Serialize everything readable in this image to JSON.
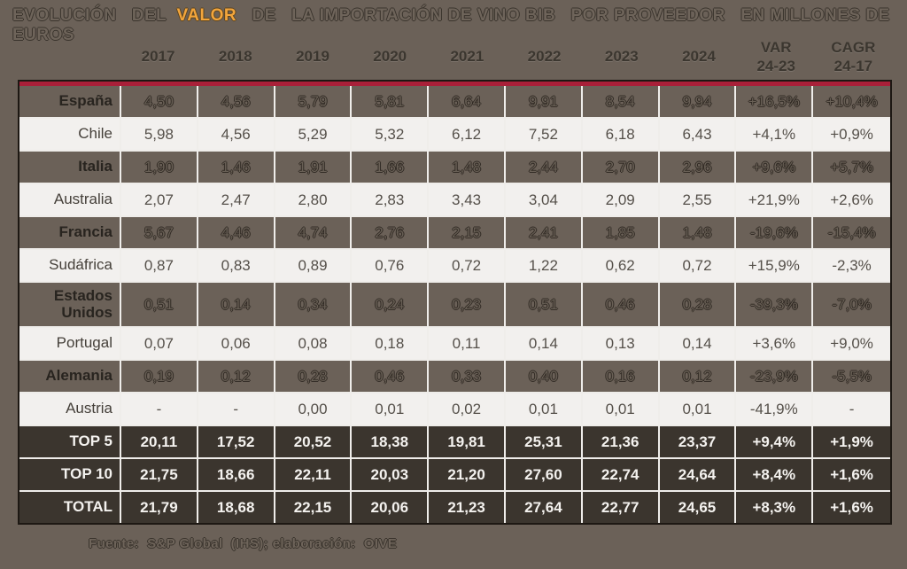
{
  "title": {
    "text_before": "EVOLUCIÓN   DEL  ",
    "highlight": "VALOR",
    "text_after": "   DE   LA IMPORTACIÓN DE VINO BIB   POR PROVEEDOR   EN MILLONES DE EUROS"
  },
  "columns": [
    {
      "label": "2017",
      "sub": ""
    },
    {
      "label": "2018",
      "sub": ""
    },
    {
      "label": "2019",
      "sub": ""
    },
    {
      "label": "2020",
      "sub": ""
    },
    {
      "label": "2021",
      "sub": ""
    },
    {
      "label": "2022",
      "sub": ""
    },
    {
      "label": "2023",
      "sub": ""
    },
    {
      "label": "2024",
      "sub": ""
    },
    {
      "label": "VAR",
      "sub": "24-23"
    },
    {
      "label": "CAGR",
      "sub": "24-17"
    }
  ],
  "rows": [
    {
      "label": "España",
      "style": "dark",
      "values": [
        "4,50",
        "4,56",
        "5,79",
        "5,81",
        "6,64",
        "9,91",
        "8,54",
        "9,94",
        "+16,5%",
        "+10,4%"
      ]
    },
    {
      "label": "Chile",
      "style": "light",
      "values": [
        "5,98",
        "4,56",
        "5,29",
        "5,32",
        "6,12",
        "7,52",
        "6,18",
        "6,43",
        "+4,1%",
        "+0,9%"
      ]
    },
    {
      "label": "Italia",
      "style": "dark",
      "values": [
        "1,90",
        "1,46",
        "1,91",
        "1,66",
        "1,48",
        "2,44",
        "2,70",
        "2,96",
        "+9,6%",
        "+5,7%"
      ]
    },
    {
      "label": "Australia",
      "style": "light",
      "values": [
        "2,07",
        "2,47",
        "2,80",
        "2,83",
        "3,43",
        "3,04",
        "2,09",
        "2,55",
        "+21,9%",
        "+2,6%"
      ]
    },
    {
      "label": "Francia",
      "style": "dark",
      "values": [
        "5,67",
        "4,46",
        "4,74",
        "2,76",
        "2,15",
        "2,41",
        "1,85",
        "1,48",
        "-19,6%",
        "-15,4%"
      ]
    },
    {
      "label": "Sudáfrica",
      "style": "light",
      "values": [
        "0,87",
        "0,83",
        "0,89",
        "0,76",
        "0,72",
        "1,22",
        "0,62",
        "0,72",
        "+15,9%",
        "-2,3%"
      ]
    },
    {
      "label": "Estados Unidos",
      "style": "dark",
      "tall": true,
      "values": [
        "0,51",
        "0,14",
        "0,34",
        "0,24",
        "0,23",
        "0,51",
        "0,46",
        "0,28",
        "-39,3%",
        "-7,0%"
      ]
    },
    {
      "label": "Portugal",
      "style": "light",
      "values": [
        "0,07",
        "0,06",
        "0,08",
        "0,18",
        "0,11",
        "0,14",
        "0,13",
        "0,14",
        "+3,6%",
        "+9,0%"
      ]
    },
    {
      "label": "Alemania",
      "style": "dark",
      "values": [
        "0,19",
        "0,12",
        "0,28",
        "0,46",
        "0,33",
        "0,40",
        "0,16",
        "0,12",
        "-23,9%",
        "-5,5%"
      ]
    },
    {
      "label": "Austria",
      "style": "light",
      "values": [
        "-",
        "-",
        "0,00",
        "0,01",
        "0,02",
        "0,01",
        "0,01",
        "0,01",
        "-41,9%",
        "-"
      ]
    },
    {
      "label": "TOP 5",
      "style": "total",
      "values": [
        "20,11",
        "17,52",
        "20,52",
        "18,38",
        "19,81",
        "25,31",
        "21,36",
        "23,37",
        "+9,4%",
        "+1,9%"
      ]
    },
    {
      "label": "TOP 10",
      "style": "total",
      "values": [
        "21,75",
        "18,66",
        "22,11",
        "20,03",
        "21,20",
        "27,60",
        "22,74",
        "24,64",
        "+8,4%",
        "+1,6%"
      ]
    },
    {
      "label": "TOTAL",
      "style": "total",
      "values": [
        "21,79",
        "18,68",
        "22,15",
        "20,06",
        "21,23",
        "27,64",
        "22,77",
        "24,65",
        "+8,3%",
        "+1,6%"
      ]
    }
  ],
  "footer": "Fuente:  S&P Global  (IHS); elaboración:  OIVE",
  "colors": {
    "background": "#6B6158",
    "light_row": "#F2F0EE",
    "total_row": "#3B352E",
    "red_band": "#A92039",
    "highlight_orange": "#F2A53C",
    "outer_border": "#1D1813",
    "separator": "#EFEDEA"
  },
  "chart_data": {
    "type": "table",
    "title": "EVOLUCIÓN DEL VALOR DE LA IMPORTACIÓN DE VINO BIB POR PROVEEDOR EN MILLONES DE EUROS",
    "unit": "millones de euros",
    "x": [
      "2017",
      "2018",
      "2019",
      "2020",
      "2021",
      "2022",
      "2023",
      "2024"
    ],
    "extra_columns": [
      "VAR 24-23",
      "CAGR 24-17"
    ],
    "series": [
      {
        "name": "España",
        "values": [
          4.5,
          4.56,
          5.79,
          5.81,
          6.64,
          9.91,
          8.54,
          9.94
        ],
        "var_24_23": "+16,5%",
        "cagr_24_17": "+10,4%"
      },
      {
        "name": "Chile",
        "values": [
          5.98,
          4.56,
          5.29,
          5.32,
          6.12,
          7.52,
          6.18,
          6.43
        ],
        "var_24_23": "+4,1%",
        "cagr_24_17": "+0,9%"
      },
      {
        "name": "Italia",
        "values": [
          1.9,
          1.46,
          1.91,
          1.66,
          1.48,
          2.44,
          2.7,
          2.96
        ],
        "var_24_23": "+9,6%",
        "cagr_24_17": "+5,7%"
      },
      {
        "name": "Australia",
        "values": [
          2.07,
          2.47,
          2.8,
          2.83,
          3.43,
          3.04,
          2.09,
          2.55
        ],
        "var_24_23": "+21,9%",
        "cagr_24_17": "+2,6%"
      },
      {
        "name": "Francia",
        "values": [
          5.67,
          4.46,
          4.74,
          2.76,
          2.15,
          2.41,
          1.85,
          1.48
        ],
        "var_24_23": "-19,6%",
        "cagr_24_17": "-15,4%"
      },
      {
        "name": "Sudáfrica",
        "values": [
          0.87,
          0.83,
          0.89,
          0.76,
          0.72,
          1.22,
          0.62,
          0.72
        ],
        "var_24_23": "+15,9%",
        "cagr_24_17": "-2,3%"
      },
      {
        "name": "Estados Unidos",
        "values": [
          0.51,
          0.14,
          0.34,
          0.24,
          0.23,
          0.51,
          0.46,
          0.28
        ],
        "var_24_23": "-39,3%",
        "cagr_24_17": "-7,0%"
      },
      {
        "name": "Portugal",
        "values": [
          0.07,
          0.06,
          0.08,
          0.18,
          0.11,
          0.14,
          0.13,
          0.14
        ],
        "var_24_23": "+3,6%",
        "cagr_24_17": "+9,0%"
      },
      {
        "name": "Alemania",
        "values": [
          0.19,
          0.12,
          0.28,
          0.46,
          0.33,
          0.4,
          0.16,
          0.12
        ],
        "var_24_23": "-23,9%",
        "cagr_24_17": "-5,5%"
      },
      {
        "name": "Austria",
        "values": [
          null,
          null,
          0.0,
          0.01,
          0.02,
          0.01,
          0.01,
          0.01
        ],
        "var_24_23": "-41,9%",
        "cagr_24_17": null
      },
      {
        "name": "TOP 5",
        "values": [
          20.11,
          17.52,
          20.52,
          18.38,
          19.81,
          25.31,
          21.36,
          23.37
        ],
        "var_24_23": "+9,4%",
        "cagr_24_17": "+1,9%"
      },
      {
        "name": "TOP 10",
        "values": [
          21.75,
          18.66,
          22.11,
          20.03,
          21.2,
          27.6,
          22.74,
          24.64
        ],
        "var_24_23": "+8,4%",
        "cagr_24_17": "+1,6%"
      },
      {
        "name": "TOTAL",
        "values": [
          21.79,
          18.68,
          22.15,
          20.06,
          21.23,
          27.64,
          22.77,
          24.65
        ],
        "var_24_23": "+8,3%",
        "cagr_24_17": "+1,6%"
      }
    ],
    "source": "Fuente: S&P Global (IHS); elaboración: OIVE"
  }
}
